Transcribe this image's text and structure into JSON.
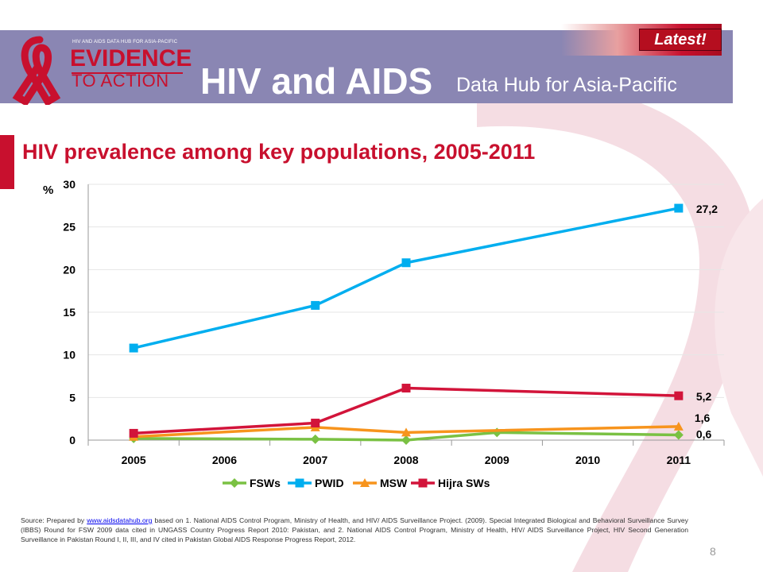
{
  "header": {
    "logo_top_text": "HIV AND AIDS DATA HUB FOR ASIA-PACIFIC",
    "logo_line1": "EVIDENCE",
    "logo_line2": "TO ACTION",
    "title": "HIV and AIDS",
    "subtitle": "Data Hub for Asia-Pacific",
    "latest_label": "Latest!"
  },
  "colors": {
    "header_bg": "#8a86b3",
    "accent_red": "#c8102e",
    "fsw": "#7ac143",
    "pwid": "#00aeef",
    "msw": "#f7941d",
    "hijra": "#d2143a"
  },
  "chart_data": {
    "type": "line",
    "title": "HIV prevalence among key populations, 2005-2011",
    "ylabel": "%",
    "ylim": [
      0,
      30
    ],
    "yticks": [
      0,
      5,
      10,
      15,
      20,
      25,
      30
    ],
    "categories": [
      "2005",
      "2006",
      "2007",
      "2008",
      "2009",
      "2010",
      "2011"
    ],
    "legend_position": "bottom",
    "series": [
      {
        "name": "FSWs",
        "marker": "diamond",
        "color": "#7ac143",
        "values": [
          0.2,
          null,
          0.1,
          0.0,
          0.9,
          null,
          0.6
        ],
        "end_label": "0,6"
      },
      {
        "name": "PWID",
        "marker": "square",
        "color": "#00aeef",
        "values": [
          10.8,
          null,
          15.8,
          20.8,
          null,
          null,
          27.2
        ],
        "end_label": "27,2"
      },
      {
        "name": "MSW",
        "marker": "triangle",
        "color": "#f7941d",
        "values": [
          0.4,
          null,
          1.5,
          0.9,
          null,
          null,
          1.6
        ],
        "end_label": "1,6"
      },
      {
        "name": "Hijra SWs",
        "marker": "square",
        "color": "#d2143a",
        "values": [
          0.8,
          null,
          2.0,
          6.1,
          null,
          null,
          5.2
        ],
        "end_label": "5,2"
      }
    ]
  },
  "source": {
    "prefix": "Source: Prepared by ",
    "link_text": "www.aidsdatahub.org",
    "text": " based on 1. National AIDS Control Program, Ministry of Health, and HIV/ AIDS Surveillance Project. (2009). Special Integrated Biological and Behavioral Surveillance Survey (IBBS) Round for FSW 2009 data cited in UNGASS Country Progress Report 2010: Pakistan, and 2. National AIDS Control Program, Ministry of Health, HIV/ AIDS Surveillance Project, HIV Second Generation Surveillance in Pakistan Round I, II, III, and IV cited in Pakistan Global AIDS Response Progress Report, 2012."
  },
  "page_number": "8"
}
